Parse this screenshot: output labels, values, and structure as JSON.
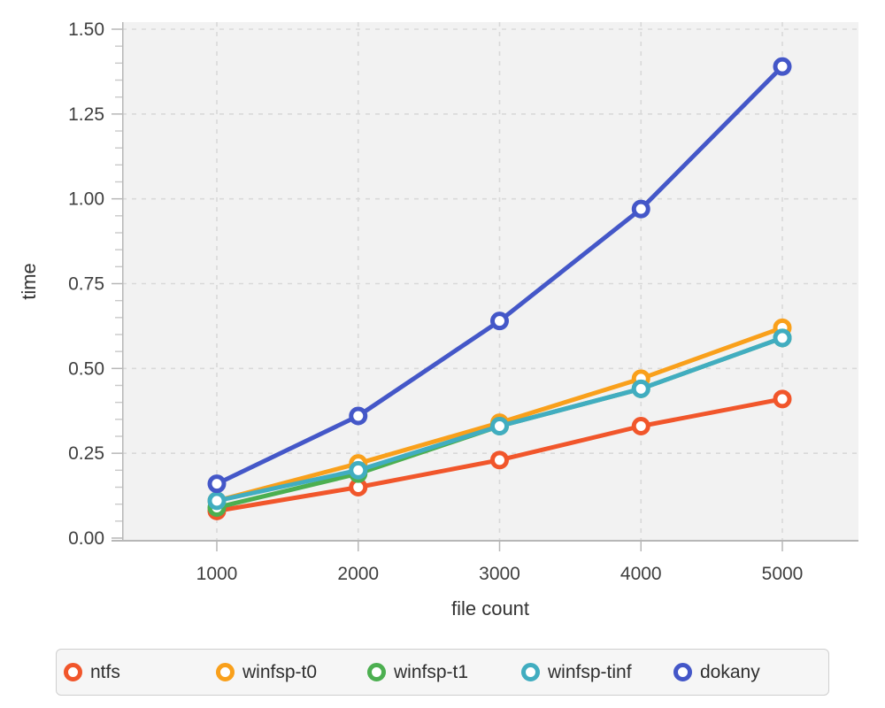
{
  "chart_data": {
    "type": "line",
    "title": "",
    "xlabel": "file count",
    "ylabel": "time",
    "x": [
      1000,
      2000,
      3000,
      4000,
      5000
    ],
    "x_tick_labels": [
      "1000",
      "2000",
      "3000",
      "4000",
      "5000"
    ],
    "xlim": [
      1000,
      5000
    ],
    "y_ticks": [
      0,
      0.25,
      0.5,
      0.75,
      1.0,
      1.25,
      1.5
    ],
    "y_tick_labels": [
      "0.00",
      "0.25",
      "0.50",
      "0.75",
      "1.00",
      "1.25",
      "1.50"
    ],
    "ylim": [
      0,
      1.5
    ],
    "y_minor_tick_step": 0.05,
    "grid": true,
    "legend_position": "bottom",
    "colors": {
      "plot_background": "#f2f2f2",
      "grid": "#d9d9d9",
      "axis": "#b7b7b7",
      "minor_tick": "#c9c9c9",
      "tick_label": "#3f3f3f",
      "axis_title": "#333333",
      "legend_background": "#f6f6f6",
      "legend_border": "#cfcfcf",
      "legend_text": "#2e2e2e"
    },
    "series": [
      {
        "name": "ntfs",
        "color": "#f1562b",
        "values": [
          0.08,
          0.15,
          0.23,
          0.33,
          0.41
        ]
      },
      {
        "name": "winfsp-t0",
        "color": "#f9a01b",
        "values": [
          0.11,
          0.22,
          0.34,
          0.47,
          0.62
        ]
      },
      {
        "name": "winfsp-t1",
        "color": "#4caf50",
        "values": [
          0.09,
          0.19,
          0.33,
          0.44,
          0.59
        ]
      },
      {
        "name": "winfsp-tinf",
        "color": "#41adc0",
        "values": [
          0.11,
          0.2,
          0.33,
          0.44,
          0.59
        ]
      },
      {
        "name": "dokany",
        "color": "#4457c8",
        "values": [
          0.16,
          0.36,
          0.64,
          0.97,
          1.39
        ]
      }
    ]
  }
}
